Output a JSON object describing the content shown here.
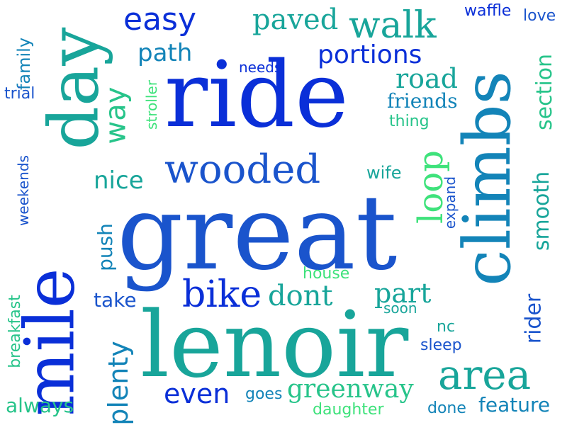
{
  "colors": {
    "background": "#ffffff",
    "palette": [
      "#0a2fd8",
      "#1a54cc",
      "#1384b8",
      "#18a59a",
      "#27c48a",
      "#3ee27b"
    ]
  },
  "words": [
    {
      "text": "great",
      "color": "#1a54cc"
    },
    {
      "text": "lenoir",
      "color": "#18a59a"
    },
    {
      "text": "ride",
      "color": "#0a2fd8"
    },
    {
      "text": "climbs",
      "color": "#1384b8"
    },
    {
      "text": "mile",
      "color": "#0a2fd8"
    },
    {
      "text": "day",
      "color": "#18a59a"
    },
    {
      "text": "wooded",
      "color": "#1a54cc"
    },
    {
      "text": "walk",
      "color": "#18a59a"
    },
    {
      "text": "area",
      "color": "#18a59a"
    },
    {
      "text": "bike",
      "color": "#0a2fd8"
    },
    {
      "text": "easy",
      "color": "#0a2fd8"
    },
    {
      "text": "way",
      "color": "#27c48a"
    },
    {
      "text": "paved",
      "color": "#18a59a"
    },
    {
      "text": "portions",
      "color": "#0a2fd8"
    },
    {
      "text": "path",
      "color": "#1384b8"
    },
    {
      "text": "road",
      "color": "#18a59a"
    },
    {
      "text": "friends",
      "color": "#1384b8"
    },
    {
      "text": "loop",
      "color": "#3ee27b"
    },
    {
      "text": "nice",
      "color": "#18a59a"
    },
    {
      "text": "dont",
      "color": "#18a59a"
    },
    {
      "text": "part",
      "color": "#18a59a"
    },
    {
      "text": "greenway",
      "color": "#27c48a"
    },
    {
      "text": "even",
      "color": "#0a2fd8"
    },
    {
      "text": "plenty",
      "color": "#1384b8"
    },
    {
      "text": "smooth",
      "color": "#18a59a"
    },
    {
      "text": "section",
      "color": "#27c48a"
    },
    {
      "text": "rider",
      "color": "#1a54cc"
    },
    {
      "text": "feature",
      "color": "#1384b8"
    },
    {
      "text": "take",
      "color": "#1a54cc"
    },
    {
      "text": "push",
      "color": "#1384b8"
    },
    {
      "text": "always",
      "color": "#27c48a"
    },
    {
      "text": "daughter",
      "color": "#3ee27b"
    },
    {
      "text": "goes",
      "color": "#1384b8"
    },
    {
      "text": "done",
      "color": "#1384b8"
    },
    {
      "text": "sleep",
      "color": "#1a54cc"
    },
    {
      "text": "nc",
      "color": "#18a59a"
    },
    {
      "text": "soon",
      "color": "#18a59a"
    },
    {
      "text": "house",
      "color": "#3ee27b"
    },
    {
      "text": "wife",
      "color": "#18a59a"
    },
    {
      "text": "expand",
      "color": "#1a54cc"
    },
    {
      "text": "thing",
      "color": "#27c48a"
    },
    {
      "text": "needs",
      "color": "#0a2fd8"
    },
    {
      "text": "waffle",
      "color": "#0a2fd8"
    },
    {
      "text": "love",
      "color": "#1a54cc"
    },
    {
      "text": "family",
      "color": "#1384b8"
    },
    {
      "text": "trial",
      "color": "#1a54cc"
    },
    {
      "text": "stroller",
      "color": "#3ee27b"
    },
    {
      "text": "weekends",
      "color": "#1a54cc"
    },
    {
      "text": "breakfast",
      "color": "#27c48a"
    }
  ]
}
